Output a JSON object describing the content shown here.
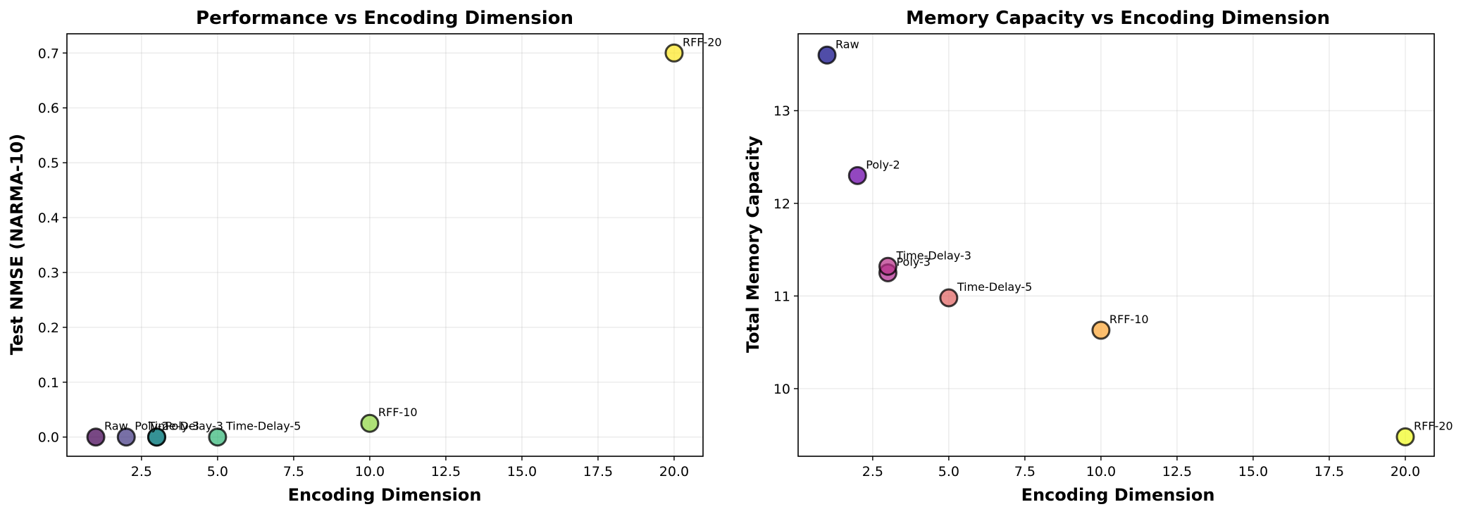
{
  "chart_data": [
    {
      "type": "scatter",
      "title": "Performance vs Encoding Dimension",
      "xlabel": "Encoding Dimension",
      "ylabel": "Test NMSE (NARMA-10)",
      "xlim": [
        0.05,
        20.95
      ],
      "ylim": [
        -0.035,
        0.735
      ],
      "xticks": [
        2.5,
        5.0,
        7.5,
        10.0,
        12.5,
        15.0,
        17.5,
        20.0
      ],
      "xtick_labels": [
        "2.5",
        "5.0",
        "7.5",
        "10.0",
        "12.5",
        "15.0",
        "17.5",
        "20.0"
      ],
      "yticks": [
        0.0,
        0.1,
        0.2,
        0.3,
        0.4,
        0.5,
        0.6,
        0.7
      ],
      "ytick_labels": [
        "0.0",
        "0.1",
        "0.2",
        "0.3",
        "0.4",
        "0.5",
        "0.6",
        "0.7"
      ],
      "grid": true,
      "points": [
        {
          "label": "Raw",
          "x": 1,
          "y": 0.0,
          "color": "#440154"
        },
        {
          "label": "Poly-2",
          "x": 2,
          "y": 0.0,
          "color": "#443983"
        },
        {
          "label": "Poly-3",
          "x": 3,
          "y": 0.0,
          "color": "#31688e"
        },
        {
          "label": "Time-Delay-3",
          "x": 3,
          "y": 0.0,
          "color": "#21918c"
        },
        {
          "label": "Time-Delay-5",
          "x": 5,
          "y": 0.0,
          "color": "#35b779"
        },
        {
          "label": "RFF-10",
          "x": 10,
          "y": 0.025,
          "color": "#90d743"
        },
        {
          "label": "RFF-20",
          "x": 20,
          "y": 0.7,
          "color": "#fde725"
        }
      ]
    },
    {
      "type": "scatter",
      "title": "Memory Capacity vs Encoding Dimension",
      "xlabel": "Encoding Dimension",
      "ylabel": "Total Memory Capacity",
      "xlim": [
        0.05,
        20.95
      ],
      "ylim": [
        9.27,
        13.83
      ],
      "xticks": [
        2.5,
        5.0,
        7.5,
        10.0,
        12.5,
        15.0,
        17.5,
        20.0
      ],
      "xtick_labels": [
        "2.5",
        "5.0",
        "7.5",
        "10.0",
        "12.5",
        "15.0",
        "17.5",
        "20.0"
      ],
      "yticks": [
        10,
        11,
        12,
        13
      ],
      "ytick_labels": [
        "10",
        "11",
        "12",
        "13"
      ],
      "grid": true,
      "points": [
        {
          "label": "Raw",
          "x": 1,
          "y": 13.6,
          "color": "#0d0887"
        },
        {
          "label": "Poly-2",
          "x": 2,
          "y": 12.3,
          "color": "#6a00a8"
        },
        {
          "label": "Poly-3",
          "x": 3,
          "y": 11.25,
          "color": "#b12a90"
        },
        {
          "label": "Time-Delay-3",
          "x": 3,
          "y": 11.32,
          "color": "#b83289"
        },
        {
          "label": "Time-Delay-5",
          "x": 5,
          "y": 10.98,
          "color": "#e16462"
        },
        {
          "label": "RFF-10",
          "x": 10,
          "y": 10.63,
          "color": "#fca636"
        },
        {
          "label": "RFF-20",
          "x": 20,
          "y": 9.48,
          "color": "#f0f921"
        }
      ]
    }
  ]
}
